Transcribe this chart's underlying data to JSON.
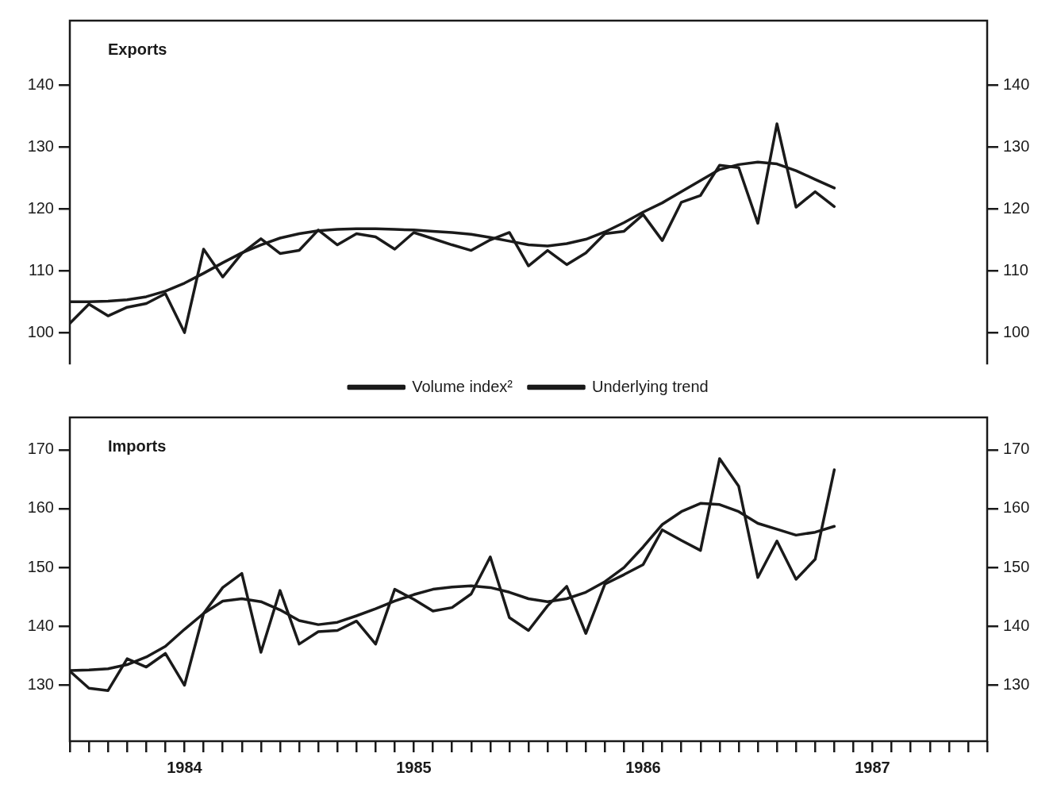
{
  "chart_data": [
    {
      "type": "line",
      "title": "Exports",
      "x": [
        "1984-01",
        "1984-02",
        "1984-03",
        "1984-04",
        "1984-05",
        "1984-06",
        "1984-07",
        "1984-08",
        "1984-09",
        "1984-10",
        "1984-11",
        "1984-12",
        "1985-01",
        "1985-02",
        "1985-03",
        "1985-04",
        "1985-05",
        "1985-06",
        "1985-07",
        "1985-08",
        "1985-09",
        "1985-10",
        "1985-11",
        "1985-12",
        "1986-01",
        "1986-02",
        "1986-03",
        "1986-04",
        "1986-05",
        "1986-06",
        "1986-07",
        "1986-08",
        "1986-09",
        "1986-10",
        "1986-11",
        "1986-12",
        "1987-01",
        "1987-02",
        "1987-03",
        "1987-04",
        "1987-05"
      ],
      "series": [
        {
          "name": "Volume index²",
          "color": "#1a1a1a",
          "values": [
            101.5,
            104.6,
            102.7,
            104.1,
            104.7,
            106.3,
            100.0,
            113.5,
            109.0,
            112.8,
            115.2,
            112.8,
            113.3,
            116.6,
            114.2,
            116.0,
            115.5,
            113.5,
            116.2,
            115.2,
            114.2,
            113.3,
            115.0,
            116.2,
            110.8,
            113.3,
            111.0,
            112.9,
            116.0,
            116.4,
            119.1,
            114.9,
            121.1,
            122.2,
            127.1,
            126.7,
            117.7,
            133.8,
            120.3,
            122.8,
            120.4
          ]
        },
        {
          "name": "Underlying trend",
          "color": "#1a1a1a",
          "values": [
            105.0,
            105.0,
            105.1,
            105.3,
            105.8,
            106.7,
            108.0,
            109.6,
            111.3,
            112.9,
            114.2,
            115.3,
            116.0,
            116.5,
            116.7,
            116.8,
            116.8,
            116.7,
            116.6,
            116.4,
            116.2,
            115.9,
            115.4,
            114.8,
            114.2,
            114.0,
            114.4,
            115.1,
            116.3,
            117.8,
            119.5,
            121.0,
            122.8,
            124.6,
            126.4,
            127.2,
            127.6,
            127.3,
            126.2,
            124.8,
            123.4
          ]
        }
      ],
      "xlim": [
        "1984-01",
        "1988-01"
      ],
      "ylim": [
        95,
        150.5
      ],
      "yticks": [
        100,
        110,
        120,
        130,
        140
      ],
      "y2lim": [
        95,
        150.5
      ],
      "y2ticks": [
        100,
        110,
        120,
        130,
        140
      ],
      "tick_labels": "y",
      "legend": "bottom"
    },
    {
      "type": "line",
      "title": "Imports",
      "x": [
        "1984-01",
        "1984-02",
        "1984-03",
        "1984-04",
        "1984-05",
        "1984-06",
        "1984-07",
        "1984-08",
        "1984-09",
        "1984-10",
        "1984-11",
        "1984-12",
        "1985-01",
        "1985-02",
        "1985-03",
        "1985-04",
        "1985-05",
        "1985-06",
        "1985-07",
        "1985-08",
        "1985-09",
        "1985-10",
        "1985-11",
        "1985-12",
        "1986-01",
        "1986-02",
        "1986-03",
        "1986-04",
        "1986-05",
        "1986-06",
        "1986-07",
        "1986-08",
        "1986-09",
        "1986-10",
        "1986-11",
        "1986-12",
        "1987-01",
        "1987-02",
        "1987-03",
        "1987-04",
        "1987-05"
      ],
      "series": [
        {
          "color": "#1a1a1a",
          "values": [
            132.4,
            129.5,
            129.1,
            134.5,
            133.1,
            135.4,
            130.0,
            142.2,
            146.6,
            149.0,
            135.6,
            146.1,
            137.0,
            139.1,
            139.3,
            140.9,
            137.0,
            146.3,
            144.6,
            142.6,
            143.2,
            145.5,
            151.8,
            141.5,
            139.3,
            143.5,
            146.8,
            138.8,
            147.2,
            148.8,
            150.5,
            156.4,
            154.6,
            152.9,
            168.5,
            163.8,
            148.3,
            154.5,
            148.0,
            151.4,
            166.6
          ]
        },
        {
          "color": "#1a1a1a",
          "values": [
            132.5,
            132.6,
            132.8,
            133.5,
            134.8,
            136.6,
            139.5,
            142.2,
            144.3,
            144.7,
            144.2,
            142.8,
            141.0,
            140.3,
            140.7,
            141.8,
            143.0,
            144.3,
            145.4,
            146.3,
            146.7,
            146.9,
            146.6,
            145.8,
            144.7,
            144.2,
            144.7,
            145.8,
            147.6,
            150.0,
            153.5,
            157.3,
            159.5,
            160.9,
            160.7,
            159.5,
            157.5,
            156.5,
            155.5,
            156.0,
            157.0
          ]
        }
      ],
      "xlim": [
        "1984-01",
        "1988-01"
      ],
      "ylim": [
        120.5,
        175.5
      ],
      "yticks": [
        130,
        140,
        150,
        160,
        170
      ],
      "y2lim": [
        120.5,
        175.5
      ],
      "y2ticks": [
        130,
        140,
        150,
        160,
        170
      ],
      "xticks": [
        {
          "value": "1984-01",
          "label": null
        },
        {
          "value": "1984-02",
          "label": null
        },
        {
          "value": "1984-03",
          "label": null
        },
        {
          "value": "1984-04",
          "label": null
        },
        {
          "value": "1984-05",
          "label": null
        },
        {
          "value": "1984-06",
          "label": null
        },
        {
          "value": "1984-07",
          "label": "1984"
        },
        {
          "value": "1984-08",
          "label": null
        },
        {
          "value": "1984-09",
          "label": null
        },
        {
          "value": "1984-10",
          "label": null
        },
        {
          "value": "1984-11",
          "label": null
        },
        {
          "value": "1984-12",
          "label": null
        },
        {
          "value": "1985-01",
          "label": null
        },
        {
          "value": "1985-02",
          "label": null
        },
        {
          "value": "1985-03",
          "label": null
        },
        {
          "value": "1985-04",
          "label": null
        },
        {
          "value": "1985-05",
          "label": null
        },
        {
          "value": "1985-06",
          "label": null
        },
        {
          "value": "1985-07",
          "label": "1985"
        },
        {
          "value": "1985-08",
          "label": null
        },
        {
          "value": "1985-09",
          "label": null
        },
        {
          "value": "1985-10",
          "label": null
        },
        {
          "value": "1985-11",
          "label": null
        },
        {
          "value": "1985-12",
          "label": null
        },
        {
          "value": "1986-01",
          "label": null
        },
        {
          "value": "1986-02",
          "label": null
        },
        {
          "value": "1986-03",
          "label": null
        },
        {
          "value": "1986-04",
          "label": null
        },
        {
          "value": "1986-05",
          "label": null
        },
        {
          "value": "1986-06",
          "label": null
        },
        {
          "value": "1986-07",
          "label": "1986"
        },
        {
          "value": "1986-08",
          "label": null
        },
        {
          "value": "1986-09",
          "label": null
        },
        {
          "value": "1986-10",
          "label": null
        },
        {
          "value": "1986-11",
          "label": null
        },
        {
          "value": "1986-12",
          "label": null
        },
        {
          "value": "1987-01",
          "label": null
        },
        {
          "value": "1987-02",
          "label": null
        },
        {
          "value": "1987-03",
          "label": null
        },
        {
          "value": "1987-04",
          "label": null
        },
        {
          "value": "1987-05",
          "label": null
        },
        {
          "value": "1987-06",
          "label": null
        },
        {
          "value": "1987-07",
          "label": "1987"
        },
        {
          "value": "1987-08",
          "label": null
        },
        {
          "value": "1987-09",
          "label": null
        },
        {
          "value": "1987-10",
          "label": null
        },
        {
          "value": "1987-11",
          "label": null
        },
        {
          "value": "1987-12",
          "label": null
        },
        {
          "value": "1988-01",
          "label": null
        }
      ],
      "legend": false
    }
  ]
}
